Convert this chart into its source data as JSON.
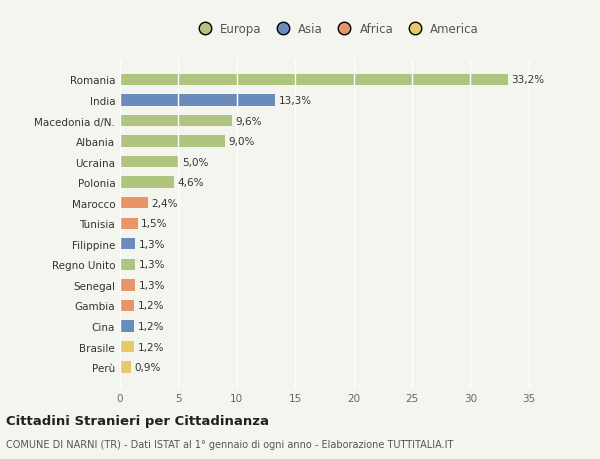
{
  "categories": [
    "Perù",
    "Brasile",
    "Cina",
    "Gambia",
    "Senegal",
    "Regno Unito",
    "Filippine",
    "Tunisia",
    "Marocco",
    "Polonia",
    "Ucraina",
    "Albania",
    "Macedonia d/N.",
    "India",
    "Romania"
  ],
  "values": [
    0.9,
    1.2,
    1.2,
    1.2,
    1.3,
    1.3,
    1.3,
    1.5,
    2.4,
    4.6,
    5.0,
    9.0,
    9.6,
    13.3,
    33.2
  ],
  "colors": [
    "#e8c96a",
    "#e8c96a",
    "#6b8cba",
    "#e8956a",
    "#e8956a",
    "#afc47e",
    "#6b8cba",
    "#e8956a",
    "#e8956a",
    "#afc47e",
    "#afc47e",
    "#afc47e",
    "#afc47e",
    "#6b8cba",
    "#afc47e"
  ],
  "labels": [
    "0,9%",
    "1,2%",
    "1,2%",
    "1,2%",
    "1,3%",
    "1,3%",
    "1,3%",
    "1,5%",
    "2,4%",
    "4,6%",
    "5,0%",
    "9,0%",
    "9,6%",
    "13,3%",
    "33,2%"
  ],
  "xlim": [
    0,
    37
  ],
  "xticks": [
    0,
    5,
    10,
    15,
    20,
    25,
    30,
    35
  ],
  "legend_labels": [
    "Europa",
    "Asia",
    "Africa",
    "America"
  ],
  "legend_colors": [
    "#afc47e",
    "#6b8cba",
    "#e8956a",
    "#e8c96a"
  ],
  "title": "Cittadini Stranieri per Cittadinanza",
  "subtitle": "COMUNE DI NARNI (TR) - Dati ISTAT al 1° gennaio di ogni anno - Elaborazione TUTTITALIA.IT",
  "bg_color": "#f5f5f0",
  "grid_color": "#ffffff",
  "bar_height": 0.55
}
